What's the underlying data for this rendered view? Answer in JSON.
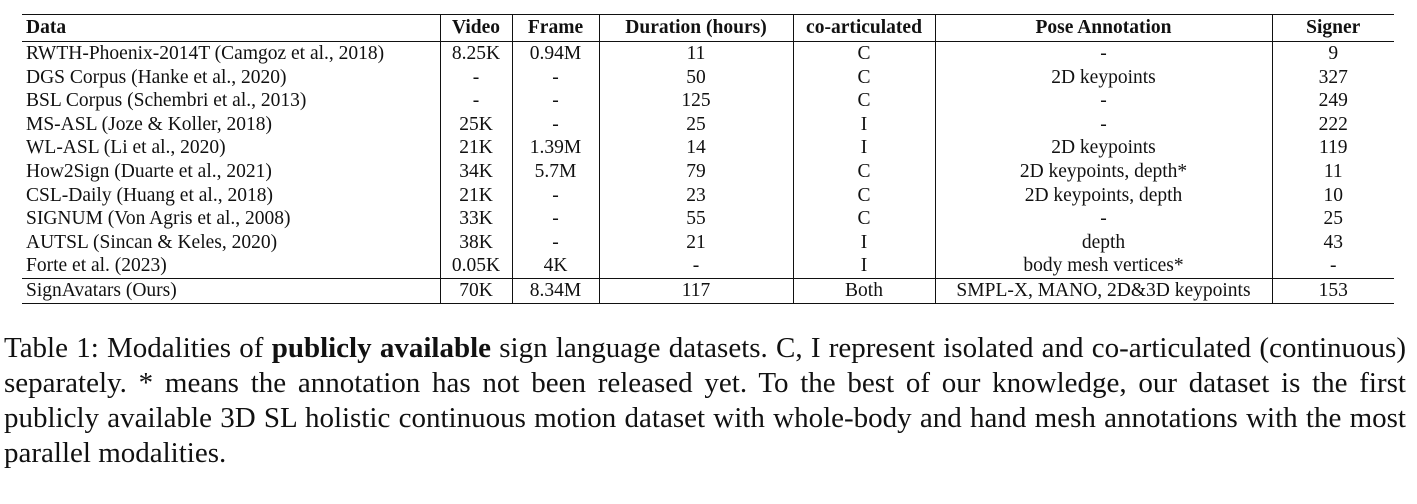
{
  "table": {
    "columns": [
      "Data",
      "Video",
      "Frame",
      "Duration (hours)",
      "co-articulated",
      "Pose Annotation",
      "Signer"
    ],
    "rows": [
      [
        "RWTH-Phoenix-2014T (Camgoz et al., 2018)",
        "8.25K",
        "0.94M",
        "11",
        "C",
        "-",
        "9"
      ],
      [
        "DGS Corpus (Hanke et al., 2020)",
        "-",
        "-",
        "50",
        "C",
        "2D keypoints",
        "327"
      ],
      [
        "BSL Corpus (Schembri et al., 2013)",
        "-",
        "-",
        "125",
        "C",
        "-",
        "249"
      ],
      [
        "MS-ASL (Joze & Koller, 2018)",
        "25K",
        "-",
        "25",
        "I",
        "-",
        "222"
      ],
      [
        "WL-ASL (Li et al., 2020)",
        "21K",
        "1.39M",
        "14",
        "I",
        "2D keypoints",
        "119"
      ],
      [
        "How2Sign (Duarte et al., 2021)",
        "34K",
        "5.7M",
        "79",
        "C",
        "2D keypoints, depth*",
        "11"
      ],
      [
        "CSL-Daily (Huang et al., 2018)",
        "21K",
        "-",
        "23",
        "C",
        "2D keypoints, depth",
        "10"
      ],
      [
        "SIGNUM (Von Agris et al., 2008)",
        "33K",
        "-",
        "55",
        "C",
        "-",
        "25"
      ],
      [
        "AUTSL (Sincan & Keles, 2020)",
        "38K",
        "-",
        "21",
        "I",
        "depth",
        "43"
      ],
      [
        "Forte et al. (2023)",
        "0.05K",
        "4K",
        "-",
        "I",
        "body mesh vertices*",
        "-"
      ]
    ],
    "ours": [
      "SignAvatars (Ours)",
      "70K",
      "8.34M",
      "117",
      "Both",
      "SMPL-X, MANO, 2D&3D keypoints",
      "153"
    ]
  },
  "caption": {
    "prefix": "Table 1: Modalities of ",
    "bold": "publicly available",
    "rest": " sign language datasets.  C, I represent isolated and co-articulated (continuous) separately. * means the annotation has not been released yet. To the best of our knowledge, our dataset is the first publicly available 3D SL holistic continuous motion dataset with whole-body and hand mesh annotations with the most parallel modalities."
  }
}
